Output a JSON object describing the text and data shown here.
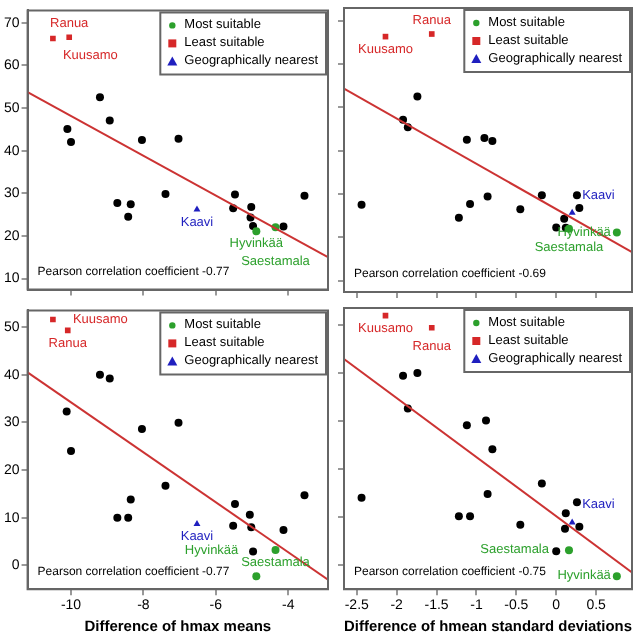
{
  "chart_data": [
    {
      "type": "scatter",
      "xlim": [
        -11.2,
        -2.9
      ],
      "xticks": [
        -10,
        -8,
        -6,
        -4
      ],
      "ylim": [
        7.4,
        72.9
      ],
      "yticks": [
        10,
        20,
        30,
        40,
        50,
        60,
        70
      ],
      "tick_labels": "y",
      "legend": "top right",
      "grid": false,
      "series": [
        {
          "color": "#000000",
          "marker": "circle",
          "x": [
            -9.2,
            -10.1,
            -10.0,
            -8.93,
            -8.04,
            -7.03,
            -8.72,
            -8.35,
            -8.42,
            -7.39,
            -5.47,
            -5.52,
            -5.02,
            -5.04,
            -4.97,
            -4.13,
            -3.55
          ],
          "values": [
            52.5,
            45.1,
            42.0,
            47.1,
            42.5,
            42.8,
            27.7,
            27.4,
            24.5,
            29.8,
            29.7,
            26.5,
            26.8,
            24.3,
            22.3,
            22.2,
            29.4
          ]
        },
        {
          "name": "Most suitable",
          "color": "#2ca02c",
          "marker": "circle",
          "x": [
            -4.35,
            -4.88
          ],
          "values": [
            22.0,
            21.1
          ]
        },
        {
          "name": "Least suitable",
          "color": "#d62728",
          "marker": "square",
          "x": [
            -10.5,
            -10.05
          ],
          "values": [
            66.3,
            66.6
          ]
        },
        {
          "name": "Geographically nearest",
          "color": "#1f1fbf",
          "marker": "triangle",
          "x": [
            -6.52
          ],
          "values": [
            26.2
          ]
        },
        {
          "type": "line",
          "color": "#cc3333",
          "marker": "none",
          "x": [
            -11.2,
            -2.9
          ],
          "values": [
            53.7,
            15.0
          ]
        }
      ],
      "annotations": [
        {
          "text": "Kuusamo",
          "x": -10.5,
          "y": 66.3
        },
        {
          "text": "Ranua",
          "x": -10.05,
          "y": 66.6
        },
        {
          "text": "Kaavi",
          "x": -6.52,
          "y": 26.2
        },
        {
          "text": "Saestamala",
          "x": -4.35,
          "y": 22.0
        },
        {
          "text": "Hyvinkää",
          "x": -4.88,
          "y": 21.1
        },
        "Pearson correlation coefficient -0.77"
      ]
    },
    {
      "type": "scatter",
      "xlim": [
        -2.66,
        0.95
      ],
      "xticks": [
        -2.5,
        -2.0,
        -1.5,
        -1.0,
        -0.5,
        0.0,
        0.5
      ],
      "ylim": [
        7.4,
        72.9
      ],
      "yticks": [
        10,
        20,
        30,
        40,
        50,
        60,
        70
      ],
      "tick_labels": false,
      "legend": "top right",
      "grid": false,
      "series": [
        {
          "color": "#000000",
          "marker": "circle",
          "x": [
            -1.74,
            -1.92,
            -1.86,
            -1.12,
            -0.9,
            -0.8,
            -2.44,
            -1.08,
            -0.86,
            -1.22,
            -0.45,
            -0.18,
            0.26,
            0.29,
            0.1,
            0.0,
            0.12
          ],
          "values": [
            52.5,
            47.1,
            45.4,
            42.5,
            42.9,
            42.2,
            27.5,
            27.7,
            29.4,
            24.5,
            26.5,
            29.7,
            29.7,
            26.8,
            24.3,
            22.3,
            22.2
          ]
        },
        {
          "name": "Most suitable",
          "color": "#2ca02c",
          "marker": "circle",
          "x": [
            0.16,
            0.76
          ],
          "values": [
            22.0,
            21.1
          ]
        },
        {
          "name": "Least suitable",
          "color": "#d62728",
          "marker": "square",
          "x": [
            -2.14,
            -1.56
          ],
          "values": [
            66.3,
            66.9
          ]
        },
        {
          "name": "Geographically nearest",
          "color": "#1f1fbf",
          "marker": "triangle",
          "x": [
            0.2
          ],
          "values": [
            25.7
          ]
        },
        {
          "type": "line",
          "color": "#cc3333",
          "marker": "none",
          "x": [
            -2.66,
            0.95
          ],
          "values": [
            54.3,
            16.6
          ]
        }
      ],
      "annotations": [
        {
          "text": "Kuusamo",
          "x": -2.14,
          "y": 66.3
        },
        {
          "text": "Ranua",
          "x": -1.56,
          "y": 66.9
        },
        {
          "text": "Kaavi",
          "x": 0.2,
          "y": 25.7
        },
        {
          "text": "Saestamala",
          "x": 0.16,
          "y": 22.0
        },
        {
          "text": "Hyvinkää",
          "x": 0.76,
          "y": 21.1
        },
        "Pearson correlation coefficient -0.69"
      ]
    },
    {
      "type": "scatter",
      "xlabel": "Difference of hmax means",
      "xlim": [
        -11.2,
        -2.9
      ],
      "xticks": [
        -10,
        -8,
        -6,
        -4
      ],
      "ylim": [
        -5,
        53.5
      ],
      "yticks": [
        0,
        10,
        20,
        30,
        40,
        50
      ],
      "legend": "top right",
      "grid": false,
      "series": [
        {
          "color": "#000000",
          "marker": "circle",
          "x": [
            -9.2,
            -8.93,
            -10.12,
            -10.0,
            -8.04,
            -7.03,
            -7.39,
            -8.35,
            -8.72,
            -8.42,
            -5.47,
            -5.52,
            -5.06,
            -5.02,
            -4.97,
            -4.13,
            -3.55
          ],
          "values": [
            40.0,
            39.2,
            32.3,
            24.0,
            28.6,
            29.9,
            16.7,
            13.8,
            10.0,
            10.0,
            12.9,
            8.3,
            10.6,
            8.0,
            2.9,
            7.4,
            14.7
          ]
        },
        {
          "name": "Most suitable",
          "color": "#2ca02c",
          "marker": "circle",
          "x": [
            -4.35,
            -4.88
          ],
          "values": [
            3.2,
            -2.3
          ]
        },
        {
          "name": "Least suitable",
          "color": "#d62728",
          "marker": "square",
          "x": [
            -10.5,
            -10.09
          ],
          "values": [
            51.6,
            49.3
          ]
        },
        {
          "name": "Geographically nearest",
          "color": "#1f1fbf",
          "marker": "triangle",
          "x": [
            -6.52
          ],
          "values": [
            8.7
          ]
        },
        {
          "type": "line",
          "color": "#cc3333",
          "marker": "none",
          "x": [
            -11.2,
            -2.9
          ],
          "values": [
            40.5,
            -3.0
          ]
        }
      ],
      "annotations": [
        {
          "text": "Kuusamo",
          "x": -10.5,
          "y": 51.6
        },
        {
          "text": "Ranua",
          "x": -10.09,
          "y": 49.3
        },
        {
          "text": "Kaavi",
          "x": -6.52,
          "y": 8.7
        },
        {
          "text": "Saestamala",
          "x": -4.35,
          "y": 3.2
        },
        {
          "text": "Hyvinkää",
          "x": -4.88,
          "y": -2.3
        },
        "Pearson correlation coefficient -0.77"
      ]
    },
    {
      "type": "scatter",
      "xlabel": "Difference of hmean standard deviations",
      "xlim": [
        -2.66,
        0.95
      ],
      "xticks": [
        -2.5,
        -2.0,
        -1.5,
        -1.0,
        -0.5,
        0.0,
        0.5
      ],
      "ylim": [
        -5,
        53.5
      ],
      "yticks": [
        0,
        10,
        20,
        30,
        40,
        50
      ],
      "tick_labels": "x",
      "legend": "top right",
      "grid": false,
      "series": [
        {
          "color": "#000000",
          "marker": "circle",
          "x": [
            -1.92,
            -1.74,
            -1.86,
            -1.12,
            -0.88,
            -0.8,
            -2.44,
            -1.22,
            -1.08,
            -0.86,
            -0.45,
            -0.18,
            0.26,
            0.12,
            0.29,
            0.11,
            0.0
          ],
          "values": [
            39.4,
            40.0,
            32.6,
            29.1,
            30.1,
            24.1,
            14.0,
            10.2,
            10.2,
            14.8,
            8.4,
            17.0,
            13.1,
            10.8,
            8.0,
            7.6,
            2.9
          ]
        },
        {
          "name": "Most suitable",
          "color": "#2ca02c",
          "marker": "circle",
          "x": [
            0.16,
            0.76
          ],
          "values": [
            3.1,
            -2.3
          ]
        },
        {
          "name": "Least suitable",
          "color": "#d62728",
          "marker": "square",
          "x": [
            -2.14,
            -1.56
          ],
          "values": [
            51.9,
            49.4
          ]
        },
        {
          "name": "Geographically nearest",
          "color": "#1f1fbf",
          "marker": "triangle",
          "x": [
            0.2
          ],
          "values": [
            8.9
          ]
        },
        {
          "type": "line",
          "color": "#cc3333",
          "marker": "none",
          "x": [
            -2.66,
            0.95
          ],
          "values": [
            42.9,
            -1.5
          ]
        }
      ],
      "annotations": [
        {
          "text": "Kuusamo",
          "x": -2.14,
          "y": 51.9
        },
        {
          "text": "Ranua",
          "x": -1.56,
          "y": 49.4
        },
        {
          "text": "Kaavi",
          "x": 0.2,
          "y": 8.9
        },
        {
          "text": "Saestamala",
          "x": 0.16,
          "y": 3.1
        },
        {
          "text": "Hyvinkää",
          "x": 0.76,
          "y": -2.3
        },
        "Pearson correlation coefficient -0.75"
      ]
    }
  ]
}
